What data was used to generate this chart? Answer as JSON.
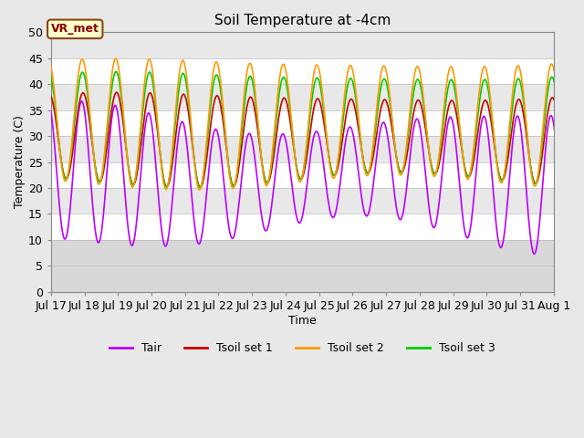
{
  "title": "Soil Temperature at -4cm",
  "xlabel": "Time",
  "ylabel": "Temperature (C)",
  "ylim": [
    0,
    50
  ],
  "annotation": "VR_met",
  "bg_color": "#e8e8e8",
  "plot_bg_color": "#e8e8e8",
  "band_colors": [
    "#ffffff",
    "#e8e8e8"
  ],
  "line_colors": {
    "Tair": "#bb00ff",
    "Tsoil set 1": "#cc0000",
    "Tsoil set 2": "#ff9900",
    "Tsoil set 3": "#00cc00"
  },
  "line_widths": {
    "Tair": 1.2,
    "Tsoil set 1": 1.2,
    "Tsoil set 2": 1.2,
    "Tsoil set 3": 1.2
  },
  "tick_labels": [
    "Jul 17",
    "Jul 18",
    "Jul 19",
    "Jul 20",
    "Jul 21",
    "Jul 22",
    "Jul 23",
    "Jul 24",
    "Jul 25",
    "Jul 26",
    "Jul 27",
    "Jul 28",
    "Jul 29",
    "Jul 30",
    "Jul 31",
    "Aug 1"
  ],
  "yticks": [
    0,
    5,
    10,
    15,
    20,
    25,
    30,
    35,
    40,
    45,
    50
  ],
  "grid_color": "#cccccc",
  "font_family": "DejaVu Sans",
  "font_size": 9,
  "title_fontsize": 11
}
